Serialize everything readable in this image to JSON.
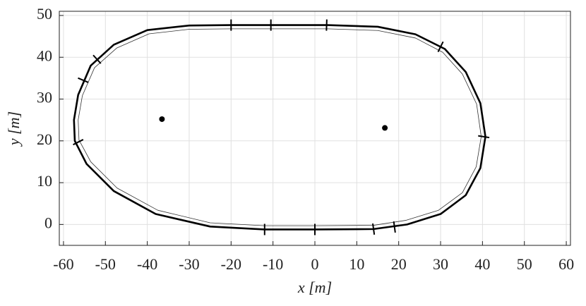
{
  "chart_data": {
    "type": "line",
    "xlabel": "x [m]",
    "ylabel": "y [m]",
    "xlim": [
      -61,
      61
    ],
    "ylim": [
      -5,
      51
    ],
    "xticks": [
      -60,
      -50,
      -40,
      -30,
      -20,
      -10,
      0,
      10,
      20,
      30,
      40,
      50,
      60
    ],
    "yticks": [
      0,
      10,
      20,
      30,
      40,
      50
    ],
    "grid": true,
    "series": [
      {
        "style": "line",
        "weight": "bold",
        "color": "#000000",
        "x": [
          -20,
          -10,
          3,
          15,
          24,
          31,
          36,
          39.5,
          40.7,
          39.5,
          36,
          30,
          22,
          14,
          0,
          -12,
          -25,
          -38,
          -48,
          -54.5,
          -57.3,
          -57.5,
          -56.5,
          -53.5,
          -48,
          -40,
          -30,
          -20
        ],
        "y": [
          47.7,
          47.7,
          47.7,
          47.3,
          45.5,
          42,
          36.5,
          29,
          21,
          13.5,
          7,
          2.5,
          0,
          -1.1,
          -1.2,
          -1.2,
          -0.5,
          2.5,
          8,
          14.5,
          20,
          25,
          31,
          38,
          43,
          46.5,
          47.6,
          47.7
        ]
      },
      {
        "style": "line",
        "weight": "thin",
        "color": "#333333",
        "x": [
          -20,
          -10,
          3,
          15,
          24,
          30.5,
          35.2,
          38.6,
          39.7,
          38.5,
          35.2,
          29.5,
          21.8,
          14,
          0,
          -12,
          -25,
          -37.5,
          -47.2,
          -53.5,
          -56.3,
          -56.5,
          -55.5,
          -52.6,
          -47.3,
          -39.6,
          -30,
          -20
        ],
        "y": [
          46.8,
          46.8,
          46.8,
          46.4,
          44.6,
          41.2,
          36,
          28.8,
          21,
          13.8,
          7.6,
          3.4,
          1,
          -0.2,
          -0.3,
          -0.3,
          0.4,
          3.4,
          8.7,
          15,
          20.2,
          25,
          30.8,
          37.5,
          42.2,
          45.6,
          46.7,
          46.8
        ]
      },
      {
        "style": "scatter",
        "color": "#000000",
        "x": [
          -36.5,
          16.7
        ],
        "y": [
          25.2,
          23.1
        ]
      },
      {
        "style": "marker",
        "color": "#000000",
        "x": [
          -20,
          -10.5,
          2.8,
          30,
          -52,
          -55.3,
          -56.5,
          40.3,
          19,
          14,
          0,
          -12
        ],
        "y": [
          47.7,
          47.7,
          47.7,
          42.5,
          39.5,
          34.5,
          19.7,
          21,
          -0.6,
          -1.1,
          -1.2,
          -1.2
        ]
      }
    ]
  }
}
